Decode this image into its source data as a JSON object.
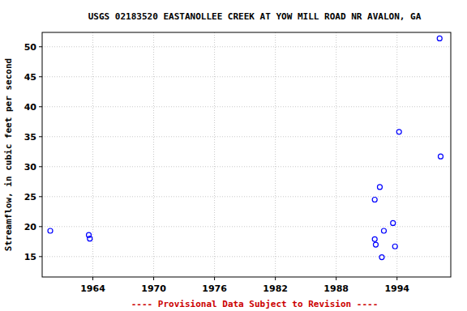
{
  "chart_data": {
    "type": "scatter",
    "title": "USGS 02183520 EASTANOLLEE CREEK AT YOW MILL ROAD NR AVALON, GA",
    "y_label": "Streamflow, in cubic feet per second",
    "annotation": "---- Provisional Data Subject to Revision ----",
    "x": [
      1959.8,
      1963.6,
      1963.7,
      1991.8,
      1992.3,
      1991.8,
      1991.9,
      1992.5,
      1992.7,
      1993.6,
      1993.8,
      1994.2,
      1998.2,
      1998.3
    ],
    "values": [
      19.3,
      18.6,
      18.0,
      24.5,
      26.6,
      17.9,
      17.0,
      14.9,
      19.3,
      20.6,
      16.7,
      35.8,
      51.4,
      31.7
    ],
    "color": "#0000ff",
    "marker": "circle-open",
    "xlim": [
      1959.0,
      1999.3
    ],
    "xticks": [
      1964,
      1970,
      1976,
      1982,
      1988,
      1994
    ],
    "ylim": [
      11.6,
      52.4
    ],
    "yticks": [
      15,
      20,
      25,
      30,
      35,
      40,
      45,
      50
    ],
    "grid": true
  }
}
